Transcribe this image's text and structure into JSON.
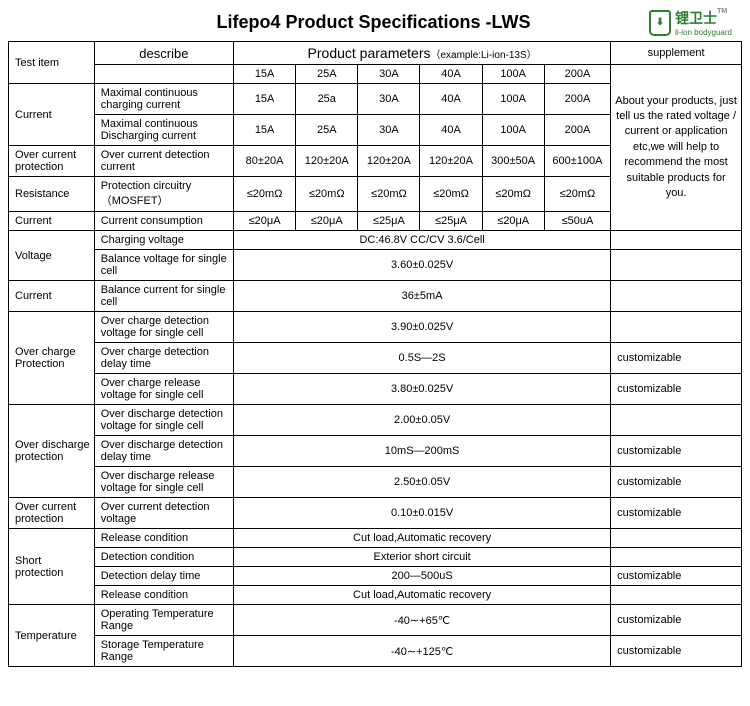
{
  "title": "Lifepo4 Product Specifications -LWS",
  "logo": {
    "text": "锂卫士",
    "subtitle": "li-ion bodyguard",
    "tm": "TM"
  },
  "headers": {
    "test_item": "Test  item",
    "describe": "describe",
    "params": "Product parameters",
    "example": "（example:Li-ion-13S）",
    "supplement": "supplement",
    "cols": [
      "15A",
      "25A",
      "30A",
      "40A",
      "100A",
      "200A"
    ]
  },
  "supplement_block": "About your products, just tell us the rated voltage /  current or application etc,we will help to recommend the most suitable products for you.",
  "customizable": "customizable",
  "rows": [
    {
      "cat": "Current",
      "desc": "Maximal continuous charging current",
      "vals": [
        "15A",
        "25a",
        "30A",
        "40A",
        "100A",
        "200A"
      ],
      "supp": "block"
    },
    {
      "cat": "",
      "desc": "Maximal continuous Discharging current",
      "vals": [
        "15A",
        "25A",
        "30A",
        "40A",
        "100A",
        "200A"
      ],
      "supp": "block"
    },
    {
      "cat": "Over current protection",
      "desc": "Over current detection current",
      "vals": [
        "80±20A",
        "120±20A",
        "120±20A",
        "120±20A",
        "300±50A",
        "600±100A"
      ],
      "supp": "block"
    },
    {
      "cat": "Resistance",
      "desc": "Protection circuitry （MOSFET）",
      "vals": [
        "≤20mΩ",
        "≤20mΩ",
        "≤20mΩ",
        "≤20mΩ",
        "≤20mΩ",
        "≤20mΩ"
      ],
      "supp": "block"
    },
    {
      "cat": "Current",
      "desc": "Current consumption",
      "vals": [
        "≤20μA",
        "≤20μA",
        "≤25μA",
        "≤25μA",
        "≤20μA",
        "≤50uA"
      ],
      "supp": "block"
    }
  ],
  "merged": [
    {
      "cat": "Voltage",
      "catspan": 2,
      "desc": "Charging voltage",
      "val": "DC:46.8V  CC/CV   3.6/Cell",
      "supp": ""
    },
    {
      "desc": "Balance voltage for single cell",
      "val": "3.60±0.025V",
      "supp": ""
    },
    {
      "cat": "Current",
      "catspan": 1,
      "desc": "Balance current for single cell",
      "val": "36±5mA",
      "supp": ""
    },
    {
      "cat": "Over charge Protection",
      "catspan": 3,
      "desc": "Over charge detection voltage for single cell",
      "val": "3.90±0.025V",
      "supp": ""
    },
    {
      "desc": "Over charge detection delay time",
      "val": "0.5S—2S",
      "supp": "customizable"
    },
    {
      "desc": "Over charge release voltage for single cell",
      "val": "3.80±0.025V",
      "supp": "customizable"
    },
    {
      "cat": "Over discharge protection",
      "catspan": 3,
      "desc": "Over discharge detection voltage for single cell",
      "val": "2.00±0.05V",
      "supp": ""
    },
    {
      "desc": "Over discharge detection delay time",
      "val": "10mS—200mS",
      "supp": "customizable"
    },
    {
      "desc": "Over discharge release voltage for single cell",
      "val": "2.50±0.05V",
      "supp": "customizable"
    },
    {
      "cat": "Over current protection",
      "catspan": 1,
      "desc": "Over current detection voltage",
      "val": "0.10±0.015V",
      "supp": "customizable"
    },
    {
      "cat": "Short protection",
      "catspan": 4,
      "desc": "Release condition",
      "val": "Cut load,Automatic recovery",
      "supp": ""
    },
    {
      "desc": "Detection condition",
      "val": "Exterior short circuit",
      "supp": ""
    },
    {
      "desc": "Detection delay time",
      "val": "200—500uS",
      "supp": "customizable"
    },
    {
      "desc": "Release condition",
      "val": "Cut load,Automatic recovery",
      "supp": ""
    },
    {
      "cat": "Temperature",
      "catspan": 2,
      "desc": "Operating Temperature Range",
      "val": "-40∼+65℃",
      "supp": "customizable"
    },
    {
      "desc": "Storage Temperature Range",
      "val": "-40∼+125℃",
      "supp": "customizable"
    }
  ]
}
